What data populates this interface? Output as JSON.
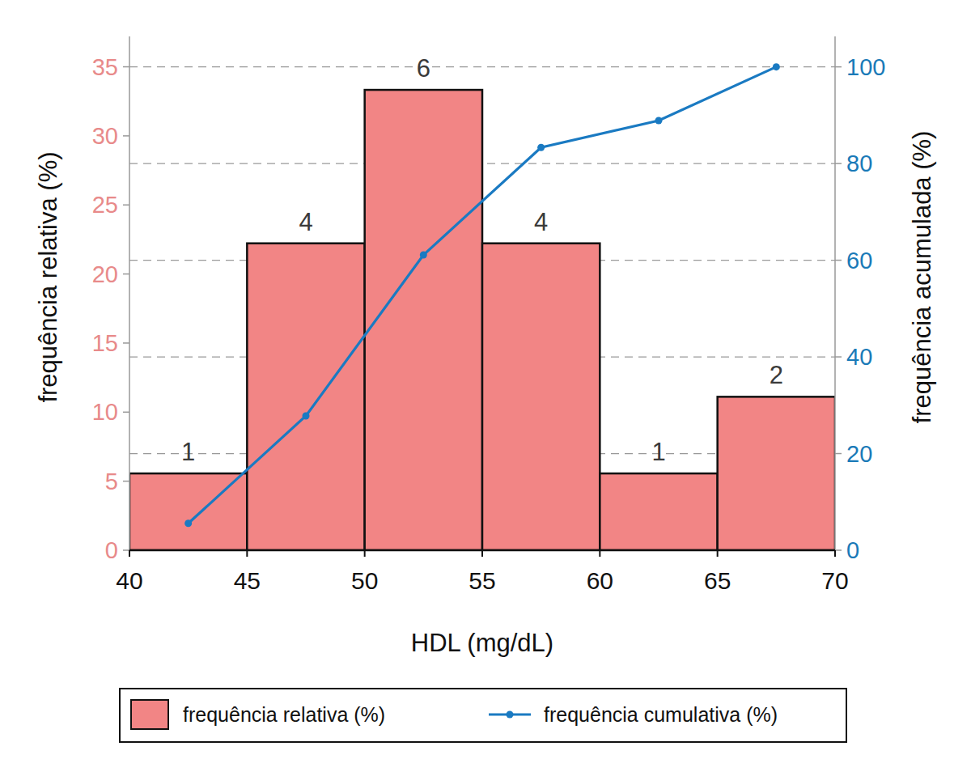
{
  "chart_data": {
    "type": "histogram",
    "xlabel": "HDL (mg/dL)",
    "ylabel": "frequência relativa (%)",
    "y2label": "frequência acumulada (%)",
    "bins": [
      40,
      45,
      50,
      55,
      60,
      65,
      70
    ],
    "xlim": [
      40,
      70
    ],
    "xticks": [
      40,
      45,
      50,
      55,
      60,
      65,
      70
    ],
    "ylim": [
      0,
      37.2
    ],
    "yticks": [
      0,
      5,
      10,
      15,
      20,
      25,
      30,
      35
    ],
    "y2lim": [
      0,
      106.3
    ],
    "y2ticks": [
      0,
      20,
      40,
      60,
      80,
      100
    ],
    "grid": true,
    "legend": "bottom",
    "series": [
      {
        "name": "frequência relativa (%)",
        "type": "bar",
        "color": "#f28585",
        "values": [
          5.56,
          22.22,
          33.33,
          22.22,
          5.56,
          11.11
        ],
        "counts": [
          1,
          4,
          6,
          4,
          1,
          2
        ]
      },
      {
        "name": "frequência cumulativa (%)",
        "type": "line",
        "axis": "y2",
        "color": "#1a7ac2",
        "marker": "circle",
        "x": [
          42.5,
          47.5,
          52.5,
          57.5,
          62.5,
          67.5
        ],
        "values": [
          5.56,
          27.78,
          61.11,
          83.33,
          88.89,
          100
        ]
      }
    ]
  }
}
